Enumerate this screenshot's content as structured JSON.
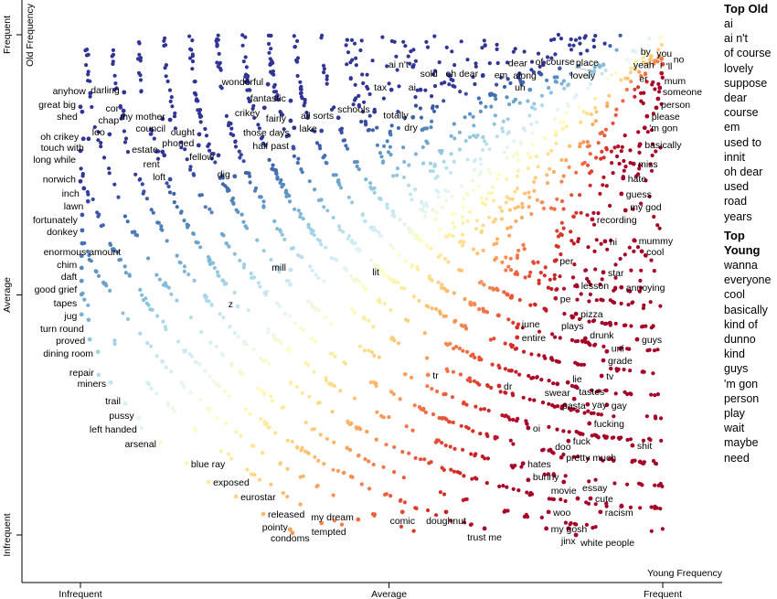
{
  "chart_data": {
    "type": "scatter",
    "title": "",
    "xlabel": "Young Frequency",
    "ylabel": "Old Frequency",
    "xlim": [
      0,
      1
    ],
    "ylim": [
      0,
      1
    ],
    "x_ticks": [
      {
        "value": 0,
        "label": "Infrequent"
      },
      {
        "value": 0.53,
        "label": "Average"
      },
      {
        "value": 1,
        "label": "Frequent"
      }
    ],
    "y_ticks": [
      {
        "value": 0,
        "label": "Infrequent"
      },
      {
        "value": 0.48,
        "label": "Average"
      },
      {
        "value": 1,
        "label": "Frequent"
      }
    ],
    "color_scale": [
      "#a50026",
      "#d73027",
      "#f46d43",
      "#fdae61",
      "#fee090",
      "#ffffbf",
      "#e0f3f8",
      "#abd9e9",
      "#74add1",
      "#4575b4",
      "#313695"
    ],
    "grid": false,
    "labeled_terms": [
      {
        "term": "anyhow",
        "x": 0.017,
        "y": 0.883
      },
      {
        "term": "darling",
        "x": 0.075,
        "y": 0.885
      },
      {
        "term": "great big",
        "x": 0.0,
        "y": 0.856
      },
      {
        "term": "shed",
        "x": 0.003,
        "y": 0.846
      },
      {
        "term": "cor",
        "x": 0.074,
        "y": 0.848
      },
      {
        "term": "chap",
        "x": 0.074,
        "y": 0.839
      },
      {
        "term": "my mother",
        "x": 0.141,
        "y": 0.832
      },
      {
        "term": "council",
        "x": 0.154,
        "y": 0.83
      },
      {
        "term": "oh crikey",
        "x": 0.005,
        "y": 0.792
      },
      {
        "term": "touch with",
        "x": 0.014,
        "y": 0.792
      },
      {
        "term": "loo",
        "x": 0.05,
        "y": 0.801
      },
      {
        "term": "estate",
        "x": 0.141,
        "y": 0.766
      },
      {
        "term": "rent",
        "x": 0.144,
        "y": 0.759
      },
      {
        "term": "ought",
        "x": 0.204,
        "y": 0.801
      },
      {
        "term": "phoned",
        "x": 0.203,
        "y": 0.779
      },
      {
        "term": "wonderful",
        "x": 0.322,
        "y": 0.901
      },
      {
        "term": "fantastic",
        "x": 0.361,
        "y": 0.868
      },
      {
        "term": "crikey",
        "x": 0.316,
        "y": 0.854
      },
      {
        "term": "fairly",
        "x": 0.361,
        "y": 0.828
      },
      {
        "term": "those days",
        "x": 0.367,
        "y": 0.814
      },
      {
        "term": "fellow",
        "x": 0.237,
        "y": 0.759
      },
      {
        "term": "half past",
        "x": 0.366,
        "y": 0.773
      },
      {
        "term": "long while",
        "x": 0.0,
        "y": 0.768
      },
      {
        "term": "norwich",
        "x": 0.0,
        "y": 0.707
      },
      {
        "term": "inch",
        "x": 0.006,
        "y": 0.693
      },
      {
        "term": "lawn",
        "x": 0.013,
        "y": 0.667
      },
      {
        "term": "fortunately",
        "x": 0.003,
        "y": 0.64
      },
      {
        "term": "loft",
        "x": 0.154,
        "y": 0.711
      },
      {
        "term": "dig",
        "x": 0.265,
        "y": 0.717
      },
      {
        "term": "donkey",
        "x": 0.003,
        "y": 0.609
      },
      {
        "term": "enormous amount",
        "x": 0.003,
        "y": 0.583
      },
      {
        "term": "chim",
        "x": 0.002,
        "y": 0.558
      },
      {
        "term": "daft",
        "x": 0.002,
        "y": 0.534
      },
      {
        "term": "good grief",
        "x": 0.002,
        "y": 0.508
      },
      {
        "term": "tapes",
        "x": 0.002,
        "y": 0.481
      },
      {
        "term": "jug",
        "x": 0.002,
        "y": 0.441
      },
      {
        "term": "turn round",
        "x": 0.014,
        "y": 0.43
      },
      {
        "term": "proved",
        "x": 0.016,
        "y": 0.391
      },
      {
        "term": "dining room",
        "x": 0.03,
        "y": 0.366
      },
      {
        "term": "repair",
        "x": 0.031,
        "y": 0.32
      },
      {
        "term": "miners",
        "x": 0.052,
        "y": 0.305
      },
      {
        "term": "trail",
        "x": 0.077,
        "y": 0.263
      },
      {
        "term": "pussy",
        "x": 0.1,
        "y": 0.234
      },
      {
        "term": "left handed",
        "x": 0.105,
        "y": 0.214
      },
      {
        "term": "arsenal",
        "x": 0.138,
        "y": 0.185
      },
      {
        "term": "blue ray",
        "x": 0.182,
        "y": 0.143
      },
      {
        "term": "exposed",
        "x": 0.22,
        "y": 0.106
      },
      {
        "term": "eurostar",
        "x": 0.267,
        "y": 0.077
      },
      {
        "term": "released",
        "x": 0.314,
        "y": 0.042
      },
      {
        "term": "condoms",
        "x": 0.36,
        "y": 0.011
      },
      {
        "term": "pointy",
        "x": 0.364,
        "y": 0.004
      },
      {
        "term": "tempted",
        "x": 0.414,
        "y": 0.024
      },
      {
        "term": "my dream",
        "x": 0.477,
        "y": 0.031
      },
      {
        "term": "comic",
        "x": 0.553,
        "y": 0.046
      },
      {
        "term": "doughnut",
        "x": 0.628,
        "y": 0.046
      },
      {
        "term": "trust me",
        "x": 0.694,
        "y": 0.013
      },
      {
        "term": "my gosh",
        "x": 0.8,
        "y": 0.013
      },
      {
        "term": "jinx",
        "x": 0.838,
        "y": 0.013
      },
      {
        "term": "white people",
        "x": 0.851,
        "y": 0.0
      },
      {
        "term": "racism",
        "x": 0.893,
        "y": 0.046
      },
      {
        "term": "woo",
        "x": 0.804,
        "y": 0.046
      },
      {
        "term": "cute",
        "x": 0.876,
        "y": 0.073
      },
      {
        "term": "essay",
        "x": 0.854,
        "y": 0.073
      },
      {
        "term": "movie",
        "x": 0.83,
        "y": 0.106
      },
      {
        "term": "bunny",
        "x": 0.769,
        "y": 0.11
      },
      {
        "term": "pretty much",
        "x": 0.826,
        "y": 0.155
      },
      {
        "term": "hates",
        "x": 0.76,
        "y": 0.143
      },
      {
        "term": "doo",
        "x": 0.807,
        "y": 0.17
      },
      {
        "term": "fuck",
        "x": 0.838,
        "y": 0.188
      },
      {
        "term": "shit",
        "x": 0.948,
        "y": 0.179
      },
      {
        "term": "fucking",
        "x": 0.874,
        "y": 0.223
      },
      {
        "term": "gay",
        "x": 0.904,
        "y": 0.26
      },
      {
        "term": "yay",
        "x": 0.871,
        "y": 0.261
      },
      {
        "term": "pasta",
        "x": 0.832,
        "y": 0.26
      },
      {
        "term": "tastes",
        "x": 0.848,
        "y": 0.272
      },
      {
        "term": "lie",
        "x": 0.837,
        "y": 0.305
      },
      {
        "term": "swear",
        "x": 0.819,
        "y": 0.302
      },
      {
        "term": "tv",
        "x": 0.895,
        "y": 0.318
      },
      {
        "term": "grade",
        "x": 0.898,
        "y": 0.349
      },
      {
        "term": "uni",
        "x": 0.904,
        "y": 0.367
      },
      {
        "term": "guys",
        "x": 0.956,
        "y": 0.391
      },
      {
        "term": "drunk",
        "x": 0.867,
        "y": 0.393
      },
      {
        "term": "entire",
        "x": 0.75,
        "y": 0.395
      },
      {
        "term": "june",
        "x": 0.75,
        "y": 0.415
      },
      {
        "term": "pizza",
        "x": 0.851,
        "y": 0.442
      },
      {
        "term": "plays",
        "x": 0.845,
        "y": 0.435
      },
      {
        "term": "pe",
        "x": 0.816,
        "y": 0.473
      },
      {
        "term": "lesson",
        "x": 0.852,
        "y": 0.499
      },
      {
        "term": "annoying",
        "x": 0.929,
        "y": 0.495
      },
      {
        "term": "star",
        "x": 0.898,
        "y": 0.525
      },
      {
        "term": "per",
        "x": 0.815,
        "y": 0.548
      },
      {
        "term": "cool",
        "x": 0.964,
        "y": 0.567
      },
      {
        "term": "hi",
        "x": 0.901,
        "y": 0.587
      },
      {
        "term": "mummy",
        "x": 0.951,
        "y": 0.589
      },
      {
        "term": "recording",
        "x": 0.879,
        "y": 0.631
      },
      {
        "term": "my god",
        "x": 0.936,
        "y": 0.649
      },
      {
        "term": "guess",
        "x": 0.929,
        "y": 0.682
      },
      {
        "term": "hate",
        "x": 0.932,
        "y": 0.713
      },
      {
        "term": "miss",
        "x": 0.95,
        "y": 0.742
      },
      {
        "term": "basically",
        "x": 0.961,
        "y": 0.781
      },
      {
        "term": "'m gon",
        "x": 0.969,
        "y": 0.814
      },
      {
        "term": "please",
        "x": 0.973,
        "y": 0.837
      },
      {
        "term": "person",
        "x": 0.989,
        "y": 0.854
      },
      {
        "term": "someone",
        "x": 0.992,
        "y": 0.872
      },
      {
        "term": "mum",
        "x": 0.995,
        "y": 0.894
      },
      {
        "term": "'ll",
        "x": 0.998,
        "y": 0.923
      },
      {
        "term": "i",
        "x": 1.0,
        "y": 0.941
      },
      {
        "term": "no",
        "x": 0.998,
        "y": 0.952
      },
      {
        "term": "you",
        "x": 0.994,
        "y": 0.956
      },
      {
        "term": "yeah",
        "x": 0.98,
        "y": 0.957
      },
      {
        "term": "by",
        "x": 0.954,
        "y": 0.945
      },
      {
        "term": "er",
        "x": 0.967,
        "y": 0.944
      },
      {
        "term": "place",
        "x": 0.898,
        "y": 0.94
      },
      {
        "term": "lovely",
        "x": 0.892,
        "y": 0.936
      },
      {
        "term": "of course",
        "x": 0.882,
        "y": 0.927
      },
      {
        "term": "along",
        "x": 0.791,
        "y": 0.921
      },
      {
        "term": "dear",
        "x": 0.788,
        "y": 0.924
      },
      {
        "term": "em",
        "x": 0.754,
        "y": 0.922
      },
      {
        "term": "uh",
        "x": 0.772,
        "y": 0.89
      },
      {
        "term": "oh dear",
        "x": 0.691,
        "y": 0.918
      },
      {
        "term": "sold",
        "x": 0.634,
        "y": 0.918
      },
      {
        "term": "ai",
        "x": 0.584,
        "y": 0.89
      },
      {
        "term": "ai n't",
        "x": 0.571,
        "y": 0.936
      },
      {
        "term": "tax",
        "x": 0.534,
        "y": 0.89
      },
      {
        "term": "totally",
        "x": 0.571,
        "y": 0.835
      },
      {
        "term": "dry",
        "x": 0.587,
        "y": 0.81
      },
      {
        "term": "schools",
        "x": 0.505,
        "y": 0.846
      },
      {
        "term": "all sorts",
        "x": 0.443,
        "y": 0.834
      },
      {
        "term": "lake",
        "x": 0.414,
        "y": 0.808
      },
      {
        "term": "mill",
        "x": 0.361,
        "y": 0.53
      },
      {
        "term": "lit",
        "x": 0.521,
        "y": 0.521
      },
      {
        "term": "z",
        "x": 0.27,
        "y": 0.457
      },
      {
        "term": "tr",
        "x": 0.597,
        "y": 0.32
      },
      {
        "term": "dr",
        "x": 0.719,
        "y": 0.298
      },
      {
        "term": "oi",
        "x": 0.769,
        "y": 0.214
      }
    ]
  },
  "top_old": {
    "heading": "Top Old",
    "items": [
      "ai",
      "ai n't",
      "of course",
      "lovely",
      "suppose",
      "dear",
      "course",
      "em",
      "used to",
      "innit",
      "oh dear",
      "used",
      "road",
      "years"
    ]
  },
  "top_young": {
    "heading": "Top Young",
    "items": [
      "wanna",
      "everyone",
      "cool",
      "basically",
      "kind of",
      "dunno",
      "kind",
      "guys",
      "'m gon",
      "person",
      "play",
      "wait",
      "maybe",
      "need"
    ]
  }
}
